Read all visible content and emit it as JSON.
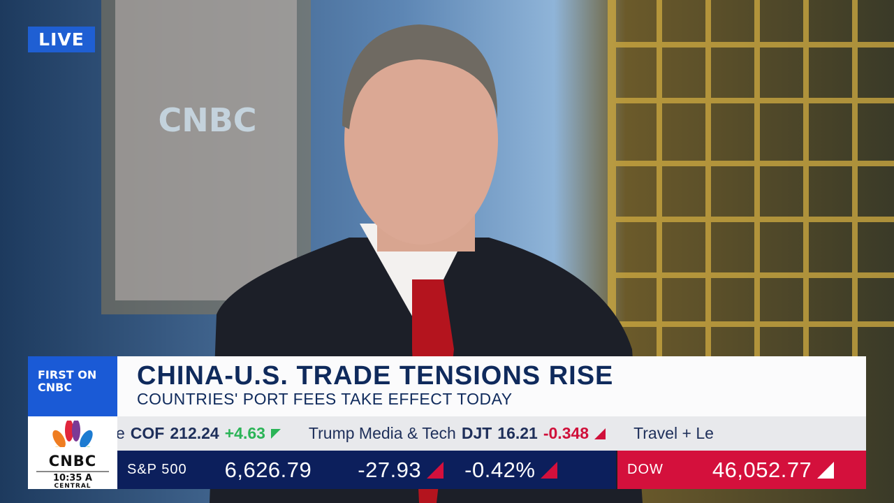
{
  "live_badge": "LIVE",
  "bug": {
    "label": "FIRST ON CNBC"
  },
  "headline": {
    "title": "CHINA-U.S. TRADE TENSIONS RISE",
    "subtitle": "COUNTRIES' PORT FEES TAKE EFFECT TODAY"
  },
  "logo": {
    "name": "CNBC",
    "time": "10:35 A",
    "timezone": "CENTRAL"
  },
  "background_logo": "CNBC",
  "ticker": [
    {
      "name": "e",
      "symbol": "COF",
      "price": "212.24",
      "change": "+4.63",
      "direction": "up"
    },
    {
      "name": "Trump Media & Tech",
      "symbol": "DJT",
      "price": "16.21",
      "change": "-0.348",
      "direction": "down"
    },
    {
      "name": "Travel + Le",
      "symbol": "",
      "price": "",
      "change": "",
      "direction": ""
    }
  ],
  "indices": {
    "sp500": {
      "label": "S&P 500",
      "value": "6,626.79",
      "change": "-27.93",
      "percent": "-0.42%"
    },
    "dow": {
      "label": "DOW",
      "value": "46,052.77"
    }
  },
  "colors": {
    "live": "#1f5fd3",
    "navy": "#0c1f5c",
    "dow_red": "#d4103c",
    "up": "#2bb457",
    "down": "#d0103a"
  }
}
